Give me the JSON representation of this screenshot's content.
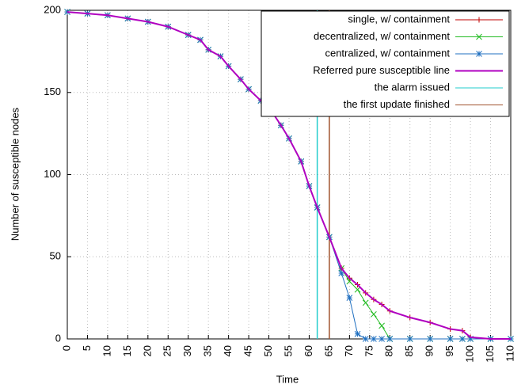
{
  "chart_data": {
    "type": "line",
    "xlabel": "Time",
    "ylabel": "Number of susceptible nodes",
    "x": [
      0,
      5,
      10,
      15,
      20,
      25,
      30,
      33,
      35,
      38,
      40,
      43,
      45,
      48,
      50,
      53,
      55,
      58,
      60,
      62,
      65,
      68,
      70,
      72,
      74,
      76,
      78,
      80,
      85,
      90,
      95,
      98,
      100,
      105,
      110
    ],
    "series": [
      {
        "name": "single, w/ containment",
        "color": "#c00000",
        "marker": "plus",
        "values": [
          199,
          198,
          197,
          195,
          193,
          190,
          185,
          182,
          176,
          172,
          166,
          158,
          152,
          145,
          141,
          130,
          122,
          108,
          93,
          80,
          62,
          43,
          37,
          33,
          28,
          24,
          21,
          17,
          13,
          10,
          6,
          5,
          1,
          0,
          0
        ]
      },
      {
        "name": "decentralized, w/ containment",
        "color": "#22bb22",
        "marker": "cross",
        "values": [
          199,
          198,
          197,
          195,
          193,
          190,
          185,
          182,
          176,
          172,
          166,
          158,
          152,
          145,
          141,
          130,
          122,
          108,
          93,
          80,
          62,
          43,
          35,
          30,
          22,
          15,
          8,
          0,
          0,
          0,
          0,
          0,
          0,
          0,
          0
        ]
      },
      {
        "name": "centralized, w/ containment",
        "color": "#1f6fc0",
        "marker": "star",
        "values": [
          199,
          198,
          197,
          195,
          193,
          190,
          185,
          182,
          176,
          172,
          166,
          158,
          152,
          145,
          141,
          130,
          122,
          108,
          93,
          80,
          62,
          40,
          25,
          3,
          0,
          0,
          0,
          0,
          0,
          0,
          0,
          0,
          0,
          0,
          0
        ]
      },
      {
        "name": "Referred pure susceptible line",
        "color": "#b000c0",
        "marker": "none",
        "values": [
          199,
          198,
          197,
          195,
          193,
          190,
          185,
          182,
          176,
          172,
          166,
          158,
          152,
          145,
          141,
          130,
          122,
          108,
          93,
          80,
          62,
          43,
          37,
          33,
          28,
          24,
          21,
          17,
          13,
          10,
          6,
          5,
          1,
          0,
          0
        ]
      }
    ],
    "vlines": [
      {
        "name": "the alarm issued",
        "color": "#22cccc",
        "x": 62
      },
      {
        "name": "the first update finished",
        "color": "#a0522d",
        "x": 65
      }
    ],
    "xlim": [
      0,
      110
    ],
    "xticks": [
      0,
      5,
      10,
      15,
      20,
      25,
      30,
      35,
      40,
      45,
      50,
      55,
      60,
      65,
      70,
      75,
      80,
      85,
      90,
      95,
      100,
      105,
      110
    ],
    "ylim": [
      0,
      200
    ],
    "yticks": [
      0,
      50,
      100,
      150,
      200
    ],
    "grid": true,
    "legend": "top-right"
  }
}
